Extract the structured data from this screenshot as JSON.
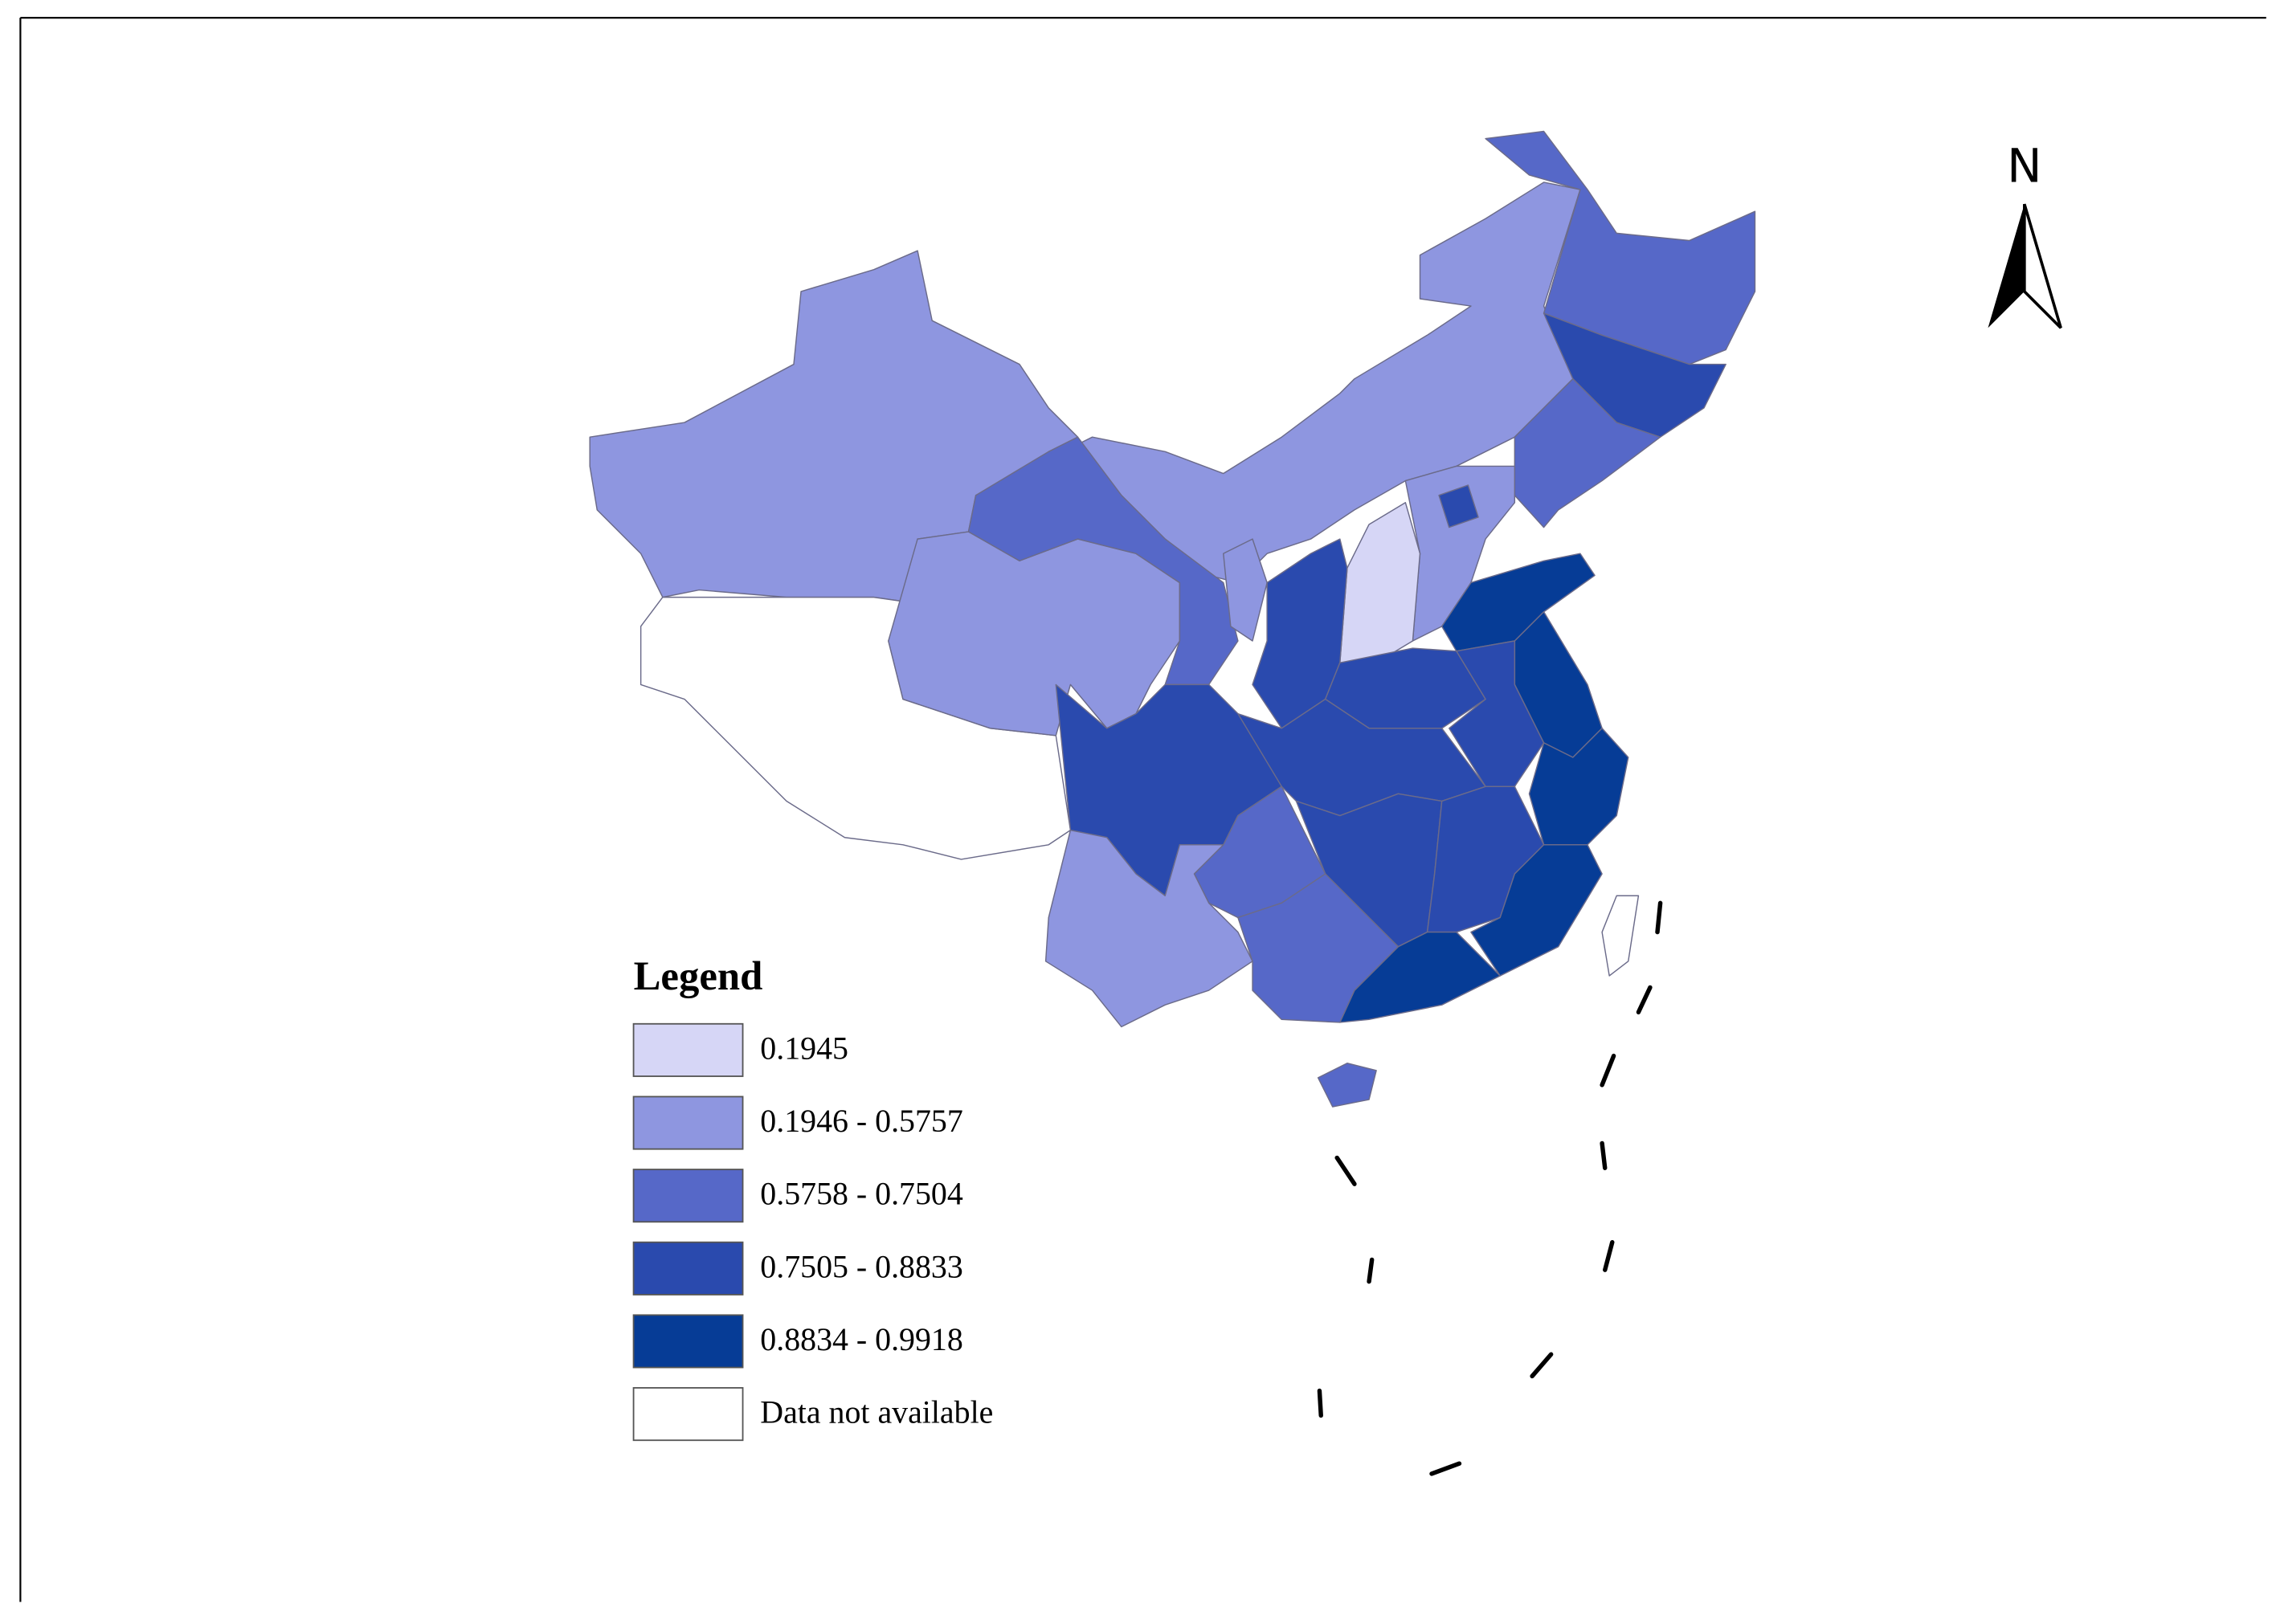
{
  "legend": {
    "title": "Legend",
    "items": [
      {
        "label": "0.1945",
        "color": "#d6d6f6"
      },
      {
        "label": "0.1946 - 0.5757",
        "color": "#8e96e0"
      },
      {
        "label": "0.5758 - 0.7504",
        "color": "#5668c8"
      },
      {
        "label": "0.7505 - 0.8833",
        "color": "#2a4aae"
      },
      {
        "label": "0.8834 - 0.9918",
        "color": "#063c96"
      },
      {
        "label": "Data not available",
        "color": "#ffffff"
      }
    ]
  },
  "north_arrow": {
    "label": "N"
  }
}
